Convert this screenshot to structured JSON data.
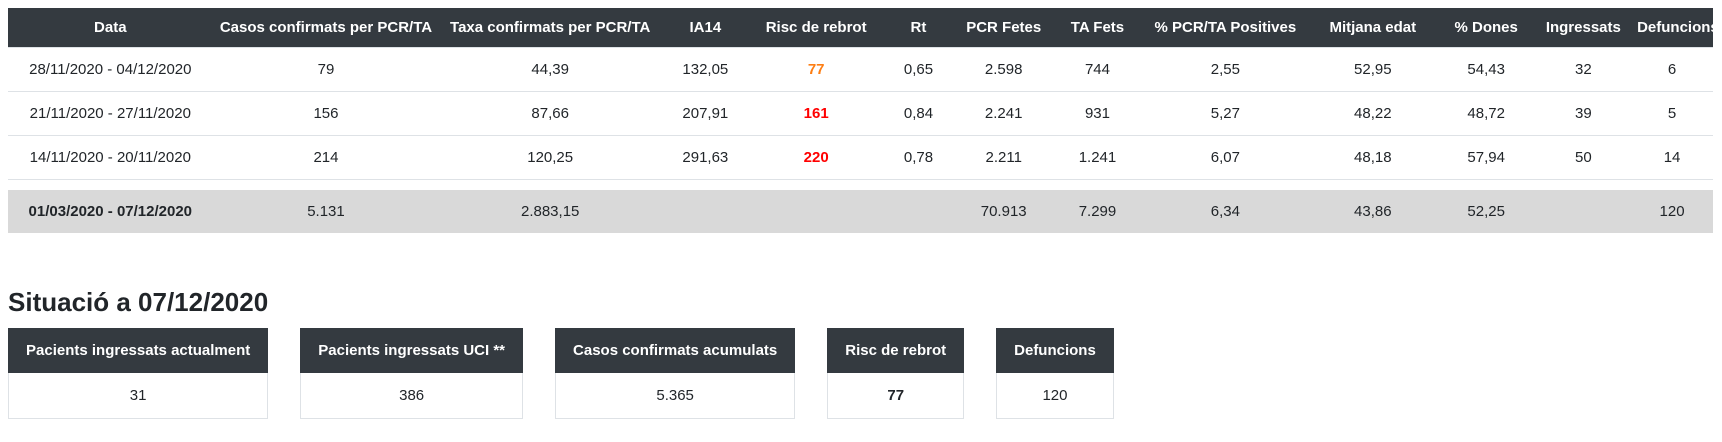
{
  "colors": {
    "header_bg": "#343a40",
    "header_text": "#ffffff",
    "body_text": "#212529",
    "border": "#dee2e6",
    "summary_row_bg": "#d9d9d9",
    "risk_orange": "#fd7e14",
    "risk_red": "#ff0000"
  },
  "table": {
    "headers": [
      "Data",
      "Casos confirmats per PCR/TA",
      "Taxa confirmats per PCR/TA",
      "IA14",
      "Risc de rebrot",
      "Rt",
      "PCR Fetes",
      "TA Fets",
      "% PCR/TA Positives",
      "Mitjana edat",
      "% Dones",
      "Ingressats",
      "Defuncions"
    ],
    "rows": [
      {
        "date_range": "28/11/2020 - 04/12/2020",
        "cases_pcr_ta": "79",
        "rate_pcr_ta": "44,39",
        "ia14": "132,05",
        "outbreak_risk": "77",
        "outbreak_risk_color": "orange",
        "rt": "0,65",
        "pcr_done": "2.598",
        "ta_done": "744",
        "pct_positive": "2,55",
        "mean_age": "52,95",
        "pct_women": "54,43",
        "admitted": "32",
        "deaths": "6"
      },
      {
        "date_range": "21/11/2020 - 27/11/2020",
        "cases_pcr_ta": "156",
        "rate_pcr_ta": "87,66",
        "ia14": "207,91",
        "outbreak_risk": "161",
        "outbreak_risk_color": "red",
        "rt": "0,84",
        "pcr_done": "2.241",
        "ta_done": "931",
        "pct_positive": "5,27",
        "mean_age": "48,22",
        "pct_women": "48,72",
        "admitted": "39",
        "deaths": "5"
      },
      {
        "date_range": "14/11/2020 - 20/11/2020",
        "cases_pcr_ta": "214",
        "rate_pcr_ta": "120,25",
        "ia14": "291,63",
        "outbreak_risk": "220",
        "outbreak_risk_color": "red",
        "rt": "0,78",
        "pcr_done": "2.211",
        "ta_done": "1.241",
        "pct_positive": "6,07",
        "mean_age": "48,18",
        "pct_women": "57,94",
        "admitted": "50",
        "deaths": "14"
      }
    ],
    "summary": {
      "date_range": "01/03/2020 - 07/12/2020",
      "cases_pcr_ta": "5.131",
      "rate_pcr_ta": "2.883,15",
      "ia14": "",
      "outbreak_risk": "",
      "outbreak_risk_color": "",
      "rt": "",
      "pcr_done": "70.913",
      "ta_done": "7.299",
      "pct_positive": "6,34",
      "mean_age": "43,86",
      "pct_women": "52,25",
      "admitted": "",
      "deaths": "120"
    }
  },
  "situation": {
    "heading": "Situació a 07/12/2020",
    "cards": [
      {
        "label": "Pacients ingressats actualment",
        "value": "31",
        "value_color": ""
      },
      {
        "label": "Pacients ingressats UCI **",
        "value": "386",
        "value_color": ""
      },
      {
        "label": "Casos confirmats acumulats",
        "value": "5.365",
        "value_color": ""
      },
      {
        "label": "Risc de rebrot",
        "value": "77",
        "value_color": "orange"
      },
      {
        "label": "Defuncions",
        "value": "120",
        "value_color": ""
      }
    ]
  }
}
